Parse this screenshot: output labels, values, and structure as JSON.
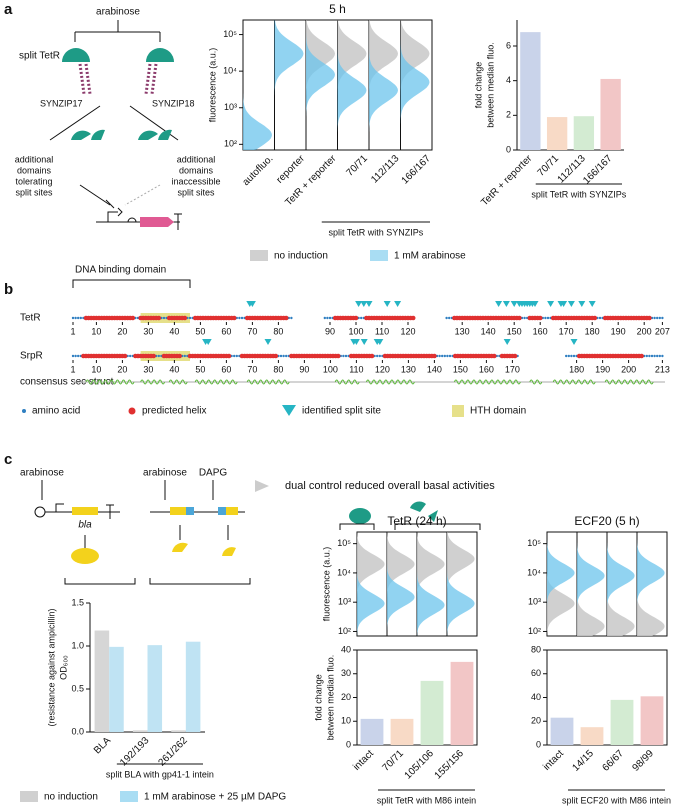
{
  "panel_labels": [
    "a",
    "b",
    "c"
  ],
  "diagram_a": {
    "inducer": "arabinose",
    "protein": "split TetR",
    "linker_left": "SYNZIP17",
    "linker_right": "SYNZIP18",
    "outcome_left": [
      "additional",
      "domains",
      "tolerating",
      "split sites"
    ],
    "outcome_right": [
      "additional",
      "domains",
      "inaccessible",
      "split sites"
    ]
  },
  "diagram_c": {
    "inducer_single": "arabinose",
    "gene": "bla",
    "inducer_dual_1": "arabinose",
    "inducer_dual_2": "DAPG",
    "headline": "dual control reduced overall basal activities"
  },
  "chart_data": [
    {
      "type": "violin",
      "title": "5 h",
      "ylabel": "fluorescence (a.u.)",
      "log": true,
      "categories": [
        "autofluo.",
        "reporter",
        "TetR + reporter",
        "70/71",
        "112/113",
        "166/167"
      ],
      "series": [
        {
          "name": "no induction",
          "color": "#c8c8c8",
          "values": [
            null,
            null,
            30000,
            30000,
            30000,
            30000
          ]
        },
        {
          "name": "1 mM arabinose",
          "color": "#6cc4ec",
          "values": [
            180,
            30000,
            8000,
            3000,
            3000,
            5000
          ]
        }
      ],
      "ylim": [
        70,
        250000
      ],
      "yticks": [
        {
          "value": 100,
          "label": "10²"
        },
        {
          "value": 1000,
          "label": "10³"
        },
        {
          "value": 10000,
          "label": "10⁴"
        },
        {
          "value": 100000,
          "label": "10⁵"
        }
      ],
      "group_label": "split TetR with SYNZIPs"
    },
    {
      "type": "bar",
      "ylabel": [
        "fold change",
        "between median fluo."
      ],
      "categories": [
        "TetR + reporter",
        "70/71",
        "112/113",
        "166/167"
      ],
      "values": [
        6.8,
        1.9,
        1.95,
        4.1
      ],
      "colors": [
        "#c9d3ea",
        "#f8dac6",
        "#d3ebd2",
        "#f2c6c6"
      ],
      "ylim": [
        0,
        7.5
      ],
      "yticks": [
        0,
        2,
        4,
        6
      ],
      "group_label": "split TetR with SYNZIPs"
    },
    {
      "type": "bar",
      "ylabel": [
        "(resistance against ampicillin)",
        "OD₆₀₀"
      ],
      "categories": [
        "BLA",
        "192/193",
        "261/262"
      ],
      "series": [
        {
          "name": "no induction",
          "color": "#d6d6d6",
          "values": [
            1.18,
            0.02,
            0.02
          ]
        },
        {
          "name": "1 mM arabinose + 25 µM DAPG",
          "color": "#bfe3f3",
          "values": [
            0.99,
            1.01,
            1.05
          ]
        }
      ],
      "ylim": [
        0,
        1.5
      ],
      "yticks": [
        {
          "value": 0,
          "label": "0.0"
        },
        {
          "value": 0.5,
          "label": "0.5"
        },
        {
          "value": 1,
          "label": "1.0"
        },
        {
          "value": 1.5,
          "label": "1.5"
        }
      ],
      "group_label": "split BLA with gp41-1 intein"
    },
    {
      "type": "violin",
      "title": "TetR (24 h)",
      "ylabel": "fluorescence (a.u.)",
      "log": true,
      "series": [
        {
          "color": "#c8c8c8",
          "values": [
            20000,
            20000,
            20000,
            30000
          ]
        },
        {
          "color": "#6cc4ec",
          "values": [
            900,
            1500,
            800,
            900
          ]
        }
      ],
      "ylim": [
        70,
        250000
      ],
      "yticks": [
        {
          "value": 100,
          "label": "10²"
        },
        {
          "value": 1000,
          "label": "10³"
        },
        {
          "value": 10000,
          "label": "10⁴"
        },
        {
          "value": 100000,
          "label": "10⁵"
        }
      ]
    },
    {
      "type": "bar",
      "ylabel": [
        "fold change",
        "between median fluo."
      ],
      "categories": [
        "intact",
        "70/71",
        "105/106",
        "155/156"
      ],
      "values": [
        11,
        11,
        27,
        35
      ],
      "colors": [
        "#c9d3ea",
        "#f8dac6",
        "#d3ebd2",
        "#f2c6c6"
      ],
      "ylim": [
        0,
        40
      ],
      "yticks": [
        0,
        10,
        20,
        30,
        40
      ],
      "group_label": "split TetR with M86 intein"
    },
    {
      "type": "violin",
      "title": "ECF20 (5 h)",
      "log": true,
      "series": [
        {
          "color": "#c8c8c8",
          "values": [
            900,
            150,
            150,
            150
          ]
        },
        {
          "color": "#6cc4ec",
          "values": [
            10000,
            8000,
            8000,
            10000
          ]
        }
      ],
      "ylim": [
        70,
        250000
      ],
      "yticks": [
        {
          "value": 100,
          "label": "10²"
        },
        {
          "value": 1000,
          "label": "10³"
        },
        {
          "value": 10000,
          "label": "10⁴"
        },
        {
          "value": 100000,
          "label": "10⁵"
        }
      ]
    },
    {
      "type": "bar",
      "categories": [
        "intact",
        "14/15",
        "66/67",
        "98/99"
      ],
      "values": [
        23,
        15,
        38,
        41
      ],
      "colors": [
        "#c9d3ea",
        "#f8dac6",
        "#d3ebd2",
        "#f2c6c6"
      ],
      "ylim": [
        0,
        80
      ],
      "yticks": [
        0,
        20,
        40,
        60,
        80
      ],
      "group_label": "split ECF20 with M86 intein"
    }
  ],
  "sequence_map": {
    "domain_label": "DNA binding domain",
    "domain_range": [
      1,
      46
    ],
    "rows": [
      {
        "name": "TetR",
        "segments": [
          [
            1,
            85
          ],
          [
            88,
            122
          ],
          [
            124,
            207
          ]
        ],
        "ticks": [
          1,
          10,
          20,
          30,
          40,
          50,
          60,
          70,
          80,
          90,
          100,
          110,
          120,
          130,
          140,
          150,
          160,
          170,
          180,
          190,
          200,
          207
        ],
        "helices": [
          [
            6,
            24
          ],
          [
            27,
            34
          ],
          [
            38,
            44
          ],
          [
            48,
            63
          ],
          [
            68,
            83
          ],
          [
            92,
            100
          ],
          [
            104,
            122
          ],
          [
            127,
            152
          ],
          [
            156,
            160
          ],
          [
            165,
            181
          ],
          [
            185,
            202
          ]
        ],
        "hth": [
          27,
          46
        ],
        "split_sites": [
          69,
          70,
          101,
          103,
          105,
          112,
          116,
          144,
          147,
          150,
          152,
          153,
          154,
          155,
          156,
          157,
          158,
          164,
          168,
          169,
          172,
          176,
          180
        ]
      },
      {
        "name": "SrpR",
        "segments": [
          [
            1,
            172
          ],
          [
            176,
            213
          ]
        ],
        "ticks": [
          1,
          10,
          20,
          30,
          40,
          50,
          60,
          70,
          80,
          90,
          100,
          110,
          120,
          130,
          140,
          150,
          160,
          170,
          180,
          190,
          200,
          213
        ],
        "helices": [
          [
            5,
            21
          ],
          [
            25,
            32
          ],
          [
            36,
            42
          ],
          [
            46,
            61
          ],
          [
            66,
            79
          ],
          [
            85,
            103
          ],
          [
            108,
            116
          ],
          [
            121,
            140
          ],
          [
            148,
            163
          ],
          [
            166,
            171
          ],
          [
            181,
            205
          ]
        ],
        "hth": [
          27,
          46
        ],
        "split_sites": [
          52,
          53,
          76,
          109,
          110,
          113,
          118,
          119,
          168,
          179
        ]
      }
    ],
    "consensus_label": "consensus sec struct",
    "legend": [
      "amino acid",
      "predicted helix",
      "identified split site",
      "HTH domain"
    ]
  }
}
